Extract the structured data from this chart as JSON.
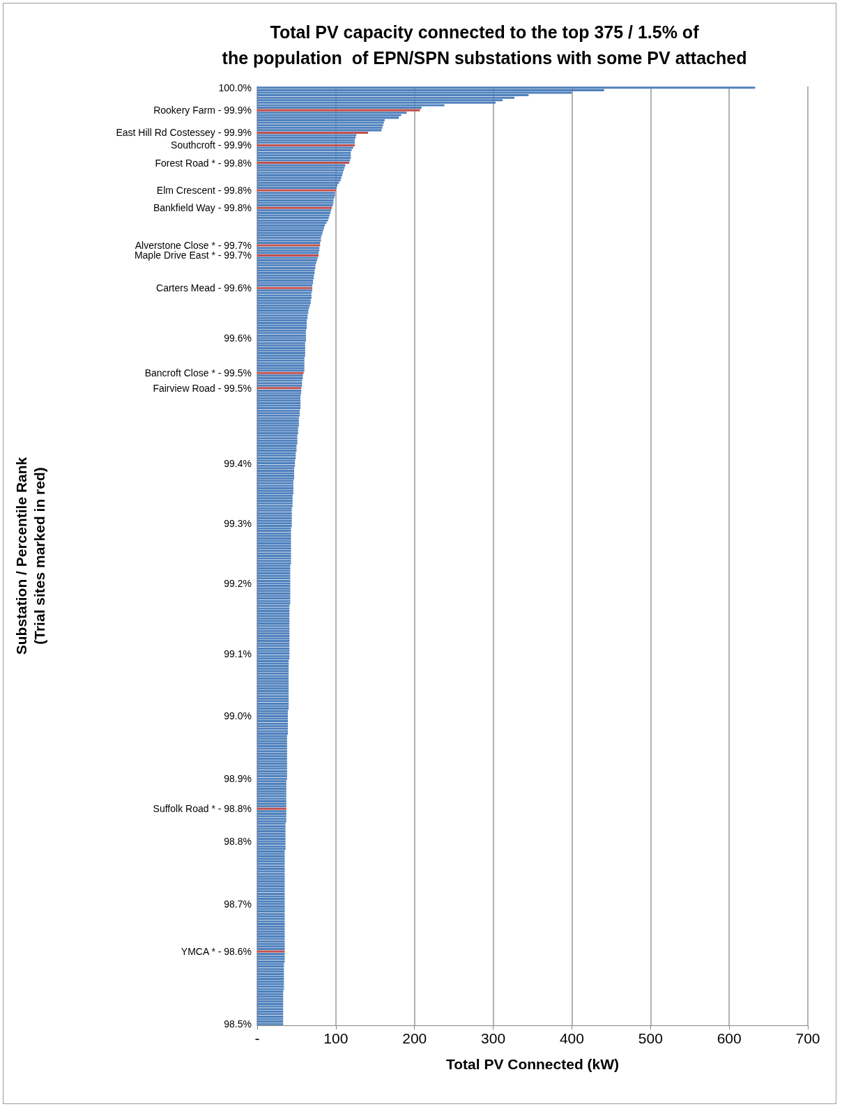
{
  "chart_data": {
    "type": "bar",
    "orientation": "horizontal",
    "title": "Total PV capacity connected to the top 375 / 1.5% of\nthe population  of EPN/SPN substations with some PV attached",
    "xlabel": "Total PV Connected (kW)",
    "ylabel": "Substation / Percentile Rank\n(Trial sites marked in red)",
    "categories": [
      "100.0%",
      null,
      null,
      null,
      null,
      null,
      null,
      null,
      null,
      "Rookery Farm - 99.9%",
      null,
      null,
      null,
      null,
      null,
      null,
      null,
      null,
      "East Hill Rd Costessey - 99.9%",
      null,
      null,
      null,
      null,
      "Southcroft - 99.9%",
      null,
      null,
      null,
      null,
      null,
      null,
      "Forest Road * - 99.8%",
      null,
      null,
      null,
      null,
      null,
      null,
      null,
      null,
      null,
      null,
      "Elm Crescent - 99.8%",
      null,
      null,
      null,
      null,
      null,
      null,
      "Bankfield Way - 99.8%",
      null,
      null,
      null,
      null,
      null,
      null,
      null,
      null,
      null,
      null,
      null,
      null,
      null,
      null,
      "Alverstone Close * - 99.7%",
      null,
      null,
      null,
      "Maple Drive East * - 99.7%",
      null,
      null,
      null,
      null,
      null,
      null,
      null,
      null,
      null,
      null,
      null,
      null,
      "Carters Mead - 99.6%",
      null,
      null,
      null,
      null,
      null,
      null,
      null,
      null,
      null,
      null,
      null,
      null,
      null,
      null,
      null,
      null,
      null,
      null,
      null,
      "99.6%",
      null,
      null,
      null,
      null,
      null,
      null,
      null,
      null,
      null,
      null,
      null,
      null,
      null,
      "Bancroft Close * - 99.5%",
      null,
      null,
      null,
      null,
      null,
      "Fairview Road - 99.5%",
      null,
      null,
      null,
      null,
      null,
      null,
      null,
      null,
      null,
      null,
      null,
      null,
      null,
      null,
      null,
      null,
      null,
      null,
      null,
      null,
      null,
      null,
      null,
      null,
      null,
      null,
      null,
      null,
      null,
      "99.4%",
      null,
      null,
      null,
      null,
      null,
      null,
      null,
      null,
      null,
      null,
      null,
      null,
      null,
      null,
      null,
      null,
      null,
      null,
      null,
      null,
      null,
      null,
      null,
      "99.3%",
      null,
      null,
      null,
      null,
      null,
      null,
      null,
      null,
      null,
      null,
      null,
      null,
      null,
      null,
      null,
      null,
      null,
      null,
      null,
      null,
      null,
      null,
      null,
      "99.2%",
      null,
      null,
      null,
      null,
      null,
      null,
      null,
      null,
      null,
      null,
      null,
      null,
      null,
      null,
      null,
      null,
      null,
      null,
      null,
      null,
      null,
      null,
      null,
      null,
      null,
      null,
      null,
      "99.1%",
      null,
      null,
      null,
      null,
      null,
      null,
      null,
      null,
      null,
      null,
      null,
      null,
      null,
      null,
      null,
      null,
      null,
      null,
      null,
      null,
      null,
      null,
      null,
      null,
      "99.0%",
      null,
      null,
      null,
      null,
      null,
      null,
      null,
      null,
      null,
      null,
      null,
      null,
      null,
      null,
      null,
      null,
      null,
      null,
      null,
      null,
      null,
      null,
      null,
      null,
      "98.9%",
      null,
      null,
      null,
      null,
      null,
      null,
      null,
      null,
      null,
      null,
      null,
      "Suffolk Road * - 98.8%",
      null,
      null,
      null,
      null,
      null,
      null,
      null,
      null,
      null,
      null,
      null,
      null,
      "98.8%",
      null,
      null,
      null,
      null,
      null,
      null,
      null,
      null,
      null,
      null,
      null,
      null,
      null,
      null,
      null,
      null,
      null,
      null,
      null,
      null,
      null,
      null,
      null,
      null,
      "98.7%",
      null,
      null,
      null,
      null,
      null,
      null,
      null,
      null,
      null,
      null,
      null,
      null,
      null,
      null,
      null,
      null,
      null,
      null,
      "YMCA * - 98.6%",
      null,
      null,
      null,
      null,
      null,
      null,
      null,
      null,
      null,
      null,
      null,
      null,
      null,
      null,
      null,
      null,
      null,
      null,
      null,
      null,
      null,
      null,
      null,
      null,
      null,
      null,
      null,
      null,
      "98.5%"
    ],
    "values": [
      633,
      441,
      400,
      345,
      327,
      312,
      303,
      238,
      209,
      207,
      190,
      183,
      180,
      162,
      161,
      160,
      159,
      158,
      141,
      126,
      125,
      124,
      124,
      124,
      122,
      120,
      119,
      119,
      119,
      118,
      117,
      112,
      111,
      110,
      109,
      108,
      107,
      106,
      104,
      102,
      101,
      100,
      99,
      99,
      98,
      97,
      97,
      96,
      95,
      94,
      93,
      92,
      91,
      90,
      88,
      86,
      85,
      84,
      83,
      82,
      81,
      81,
      80,
      80,
      79,
      79,
      78,
      78,
      77,
      76,
      75,
      74,
      74,
      73,
      73,
      72,
      72,
      71,
      71,
      70,
      70,
      70,
      69,
      69,
      69,
      68,
      68,
      67,
      66,
      65,
      65,
      64,
      64,
      63,
      63,
      63,
      63,
      62,
      62,
      62,
      62,
      62,
      61,
      61,
      61,
      61,
      61,
      61,
      60,
      60,
      60,
      60,
      60,
      60,
      59,
      58,
      58,
      57,
      57,
      57,
      56,
      56,
      56,
      55,
      55,
      55,
      55,
      55,
      55,
      54,
      54,
      54,
      53,
      53,
      53,
      53,
      52,
      52,
      52,
      51,
      51,
      51,
      51,
      50,
      50,
      50,
      49,
      49,
      49,
      48,
      48,
      48,
      47,
      47,
      47,
      47,
      47,
      46,
      46,
      46,
      46,
      46,
      46,
      45,
      45,
      45,
      45,
      45,
      44,
      44,
      44,
      44,
      44,
      44,
      44,
      44,
      43,
      43,
      43,
      43,
      43,
      43,
      43,
      43,
      43,
      43,
      43,
      43,
      43,
      43,
      43,
      42,
      42,
      42,
      42,
      42,
      42,
      42,
      42,
      42,
      42,
      42,
      42,
      42,
      42,
      42,
      42,
      41,
      41,
      41,
      41,
      41,
      41,
      41,
      41,
      41,
      41,
      41,
      41,
      41,
      41,
      41,
      41,
      41,
      41,
      41,
      41,
      41,
      41,
      40,
      40,
      40,
      40,
      40,
      40,
      40,
      40,
      40,
      40,
      40,
      40,
      40,
      40,
      40,
      40,
      40,
      40,
      40,
      40,
      39,
      39,
      39,
      39,
      39,
      39,
      39,
      39,
      39,
      39,
      38,
      38,
      38,
      38,
      38,
      38,
      38,
      38,
      38,
      38,
      38,
      38,
      38,
      38,
      38,
      38,
      38,
      38,
      37,
      37,
      37,
      37,
      37,
      37,
      37,
      37,
      37,
      37,
      37,
      37,
      37,
      37,
      37,
      37,
      37,
      36,
      36,
      36,
      36,
      36,
      36,
      36,
      36,
      36,
      36,
      36,
      35,
      35,
      35,
      35,
      35,
      35,
      35,
      35,
      35,
      35,
      35,
      35,
      35,
      35,
      35,
      35,
      35,
      35,
      35,
      35,
      35,
      35,
      35,
      35,
      35,
      35,
      35,
      35,
      35,
      35,
      35,
      35,
      35,
      35,
      35,
      35,
      35,
      35,
      35,
      35,
      35,
      35,
      35,
      35,
      35,
      34,
      34,
      34,
      34,
      34,
      34,
      34,
      34,
      34,
      34,
      34,
      33,
      33,
      33,
      33,
      33,
      33,
      33,
      33,
      33,
      33,
      33,
      33,
      33,
      33
    ],
    "colors": [
      "#4f81bd",
      "#4f81bd",
      "#4f81bd",
      "#4f81bd",
      "#4f81bd",
      "#4f81bd",
      "#4f81bd",
      "#4f81bd",
      "#4f81bd",
      "#c0504d",
      "#4f81bd",
      "#4f81bd",
      "#4f81bd",
      "#4f81bd",
      "#4f81bd",
      "#4f81bd",
      "#4f81bd",
      "#4f81bd",
      "#c0504d",
      "#4f81bd",
      "#4f81bd",
      "#4f81bd",
      "#4f81bd",
      "#c0504d",
      "#4f81bd",
      "#4f81bd",
      "#4f81bd",
      "#4f81bd",
      "#4f81bd",
      "#4f81bd",
      "#c0504d",
      "#4f81bd",
      "#4f81bd",
      "#4f81bd",
      "#4f81bd",
      "#4f81bd",
      "#4f81bd",
      "#4f81bd",
      "#4f81bd",
      "#4f81bd",
      "#4f81bd",
      "#c0504d",
      "#4f81bd",
      "#4f81bd",
      "#4f81bd",
      "#4f81bd",
      "#4f81bd",
      "#4f81bd",
      "#c0504d",
      "#4f81bd",
      "#4f81bd",
      "#4f81bd",
      "#4f81bd",
      "#4f81bd",
      "#4f81bd",
      "#4f81bd",
      "#4f81bd",
      "#4f81bd",
      "#4f81bd",
      "#4f81bd",
      "#4f81bd",
      "#4f81bd",
      "#4f81bd",
      "#c0504d",
      "#4f81bd",
      "#4f81bd",
      "#4f81bd",
      "#c0504d",
      "#4f81bd",
      "#4f81bd",
      "#4f81bd",
      "#4f81bd",
      "#4f81bd",
      "#4f81bd",
      "#4f81bd",
      "#4f81bd",
      "#4f81bd",
      "#4f81bd",
      "#4f81bd",
      "#4f81bd",
      "#c0504d",
      "#4f81bd",
      "#4f81bd",
      "#4f81bd",
      "#4f81bd",
      "#4f81bd",
      "#4f81bd",
      "#4f81bd",
      "#4f81bd",
      "#4f81bd",
      "#4f81bd",
      "#4f81bd",
      "#4f81bd",
      "#4f81bd",
      "#4f81bd",
      "#4f81bd",
      "#4f81bd",
      "#4f81bd",
      "#4f81bd",
      "#4f81bd",
      "#4f81bd",
      "#4f81bd",
      "#4f81bd",
      "#4f81bd",
      "#4f81bd",
      "#4f81bd",
      "#4f81bd",
      "#4f81bd",
      "#4f81bd",
      "#4f81bd",
      "#4f81bd",
      "#4f81bd",
      "#4f81bd",
      "#4f81bd",
      "#c0504d",
      "#4f81bd",
      "#4f81bd",
      "#4f81bd",
      "#4f81bd",
      "#4f81bd",
      "#c0504d",
      "#4f81bd",
      "#4f81bd",
      "#4f81bd",
      "#4f81bd",
      "#4f81bd",
      "#4f81bd",
      "#4f81bd",
      "#4f81bd",
      "#4f81bd",
      "#4f81bd",
      "#4f81bd",
      "#4f81bd",
      "#4f81bd",
      "#4f81bd",
      "#4f81bd",
      "#4f81bd",
      "#4f81bd",
      "#4f81bd",
      "#4f81bd",
      "#4f81bd",
      "#4f81bd",
      "#4f81bd",
      "#4f81bd",
      "#4f81bd",
      "#4f81bd",
      "#4f81bd",
      "#4f81bd",
      "#4f81bd",
      "#4f81bd",
      "#4f81bd",
      "#4f81bd",
      "#4f81bd",
      "#4f81bd",
      "#4f81bd",
      "#4f81bd",
      "#4f81bd",
      "#4f81bd",
      "#4f81bd",
      "#4f81bd",
      "#4f81bd",
      "#4f81bd",
      "#4f81bd",
      "#4f81bd",
      "#4f81bd",
      "#4f81bd",
      "#4f81bd",
      "#4f81bd",
      "#4f81bd",
      "#4f81bd",
      "#4f81bd",
      "#4f81bd",
      "#4f81bd",
      "#4f81bd",
      "#4f81bd",
      "#4f81bd",
      "#4f81bd",
      "#4f81bd",
      "#4f81bd",
      "#4f81bd",
      "#4f81bd",
      "#4f81bd",
      "#4f81bd",
      "#4f81bd",
      "#4f81bd",
      "#4f81bd",
      "#4f81bd",
      "#4f81bd",
      "#4f81bd",
      "#4f81bd",
      "#4f81bd",
      "#4f81bd",
      "#4f81bd",
      "#4f81bd",
      "#4f81bd",
      "#4f81bd",
      "#4f81bd",
      "#4f81bd",
      "#4f81bd",
      "#4f81bd",
      "#4f81bd",
      "#4f81bd",
      "#4f81bd",
      "#4f81bd",
      "#4f81bd",
      "#4f81bd",
      "#4f81bd",
      "#4f81bd",
      "#4f81bd",
      "#4f81bd",
      "#4f81bd",
      "#4f81bd",
      "#4f81bd",
      "#4f81bd",
      "#4f81bd",
      "#4f81bd",
      "#4f81bd",
      "#4f81bd",
      "#4f81bd",
      "#4f81bd",
      "#4f81bd",
      "#4f81bd",
      "#4f81bd",
      "#4f81bd",
      "#4f81bd",
      "#4f81bd",
      "#4f81bd",
      "#4f81bd",
      "#4f81bd",
      "#4f81bd",
      "#4f81bd",
      "#4f81bd",
      "#4f81bd",
      "#4f81bd",
      "#4f81bd",
      "#4f81bd",
      "#4f81bd",
      "#4f81bd",
      "#4f81bd",
      "#4f81bd",
      "#4f81bd",
      "#4f81bd",
      "#4f81bd",
      "#4f81bd",
      "#4f81bd",
      "#4f81bd",
      "#4f81bd",
      "#4f81bd",
      "#4f81bd",
      "#4f81bd",
      "#4f81bd",
      "#4f81bd",
      "#4f81bd",
      "#4f81bd",
      "#4f81bd",
      "#4f81bd",
      "#4f81bd",
      "#4f81bd",
      "#4f81bd",
      "#4f81bd",
      "#4f81bd",
      "#4f81bd",
      "#4f81bd",
      "#4f81bd",
      "#4f81bd",
      "#4f81bd",
      "#4f81bd",
      "#4f81bd",
      "#4f81bd",
      "#4f81bd",
      "#4f81bd",
      "#4f81bd",
      "#4f81bd",
      "#4f81bd",
      "#4f81bd",
      "#4f81bd",
      "#4f81bd",
      "#4f81bd",
      "#4f81bd",
      "#4f81bd",
      "#4f81bd",
      "#4f81bd",
      "#4f81bd",
      "#4f81bd",
      "#4f81bd",
      "#4f81bd",
      "#4f81bd",
      "#4f81bd",
      "#c0504d",
      "#4f81bd",
      "#4f81bd",
      "#4f81bd",
      "#4f81bd",
      "#4f81bd",
      "#4f81bd",
      "#4f81bd",
      "#4f81bd",
      "#4f81bd",
      "#4f81bd",
      "#4f81bd",
      "#4f81bd",
      "#4f81bd",
      "#4f81bd",
      "#4f81bd",
      "#4f81bd",
      "#4f81bd",
      "#4f81bd",
      "#4f81bd",
      "#4f81bd",
      "#4f81bd",
      "#4f81bd",
      "#4f81bd",
      "#4f81bd",
      "#4f81bd",
      "#4f81bd",
      "#4f81bd",
      "#4f81bd",
      "#4f81bd",
      "#4f81bd",
      "#4f81bd",
      "#4f81bd",
      "#4f81bd",
      "#4f81bd",
      "#4f81bd",
      "#4f81bd",
      "#4f81bd",
      "#4f81bd",
      "#4f81bd",
      "#4f81bd",
      "#4f81bd",
      "#4f81bd",
      "#4f81bd",
      "#4f81bd",
      "#4f81bd",
      "#4f81bd",
      "#4f81bd",
      "#4f81bd",
      "#4f81bd",
      "#4f81bd",
      "#4f81bd",
      "#4f81bd",
      "#4f81bd",
      "#4f81bd",
      "#4f81bd",
      "#4f81bd",
      "#c0504d",
      "#4f81bd",
      "#4f81bd",
      "#4f81bd",
      "#4f81bd",
      "#4f81bd",
      "#4f81bd",
      "#4f81bd",
      "#4f81bd",
      "#4f81bd",
      "#4f81bd",
      "#4f81bd",
      "#4f81bd",
      "#4f81bd",
      "#4f81bd",
      "#4f81bd",
      "#4f81bd",
      "#4f81bd",
      "#4f81bd",
      "#4f81bd",
      "#4f81bd",
      "#4f81bd",
      "#4f81bd",
      "#4f81bd",
      "#4f81bd",
      "#4f81bd",
      "#4f81bd",
      "#4f81bd",
      "#4f81bd",
      "#4f81bd"
    ],
    "xlim": [
      0,
      700
    ],
    "xticks": [
      {
        "value": 0,
        "label": "-"
      },
      100,
      200,
      300,
      400,
      500,
      600,
      700
    ],
    "grid": "x"
  }
}
